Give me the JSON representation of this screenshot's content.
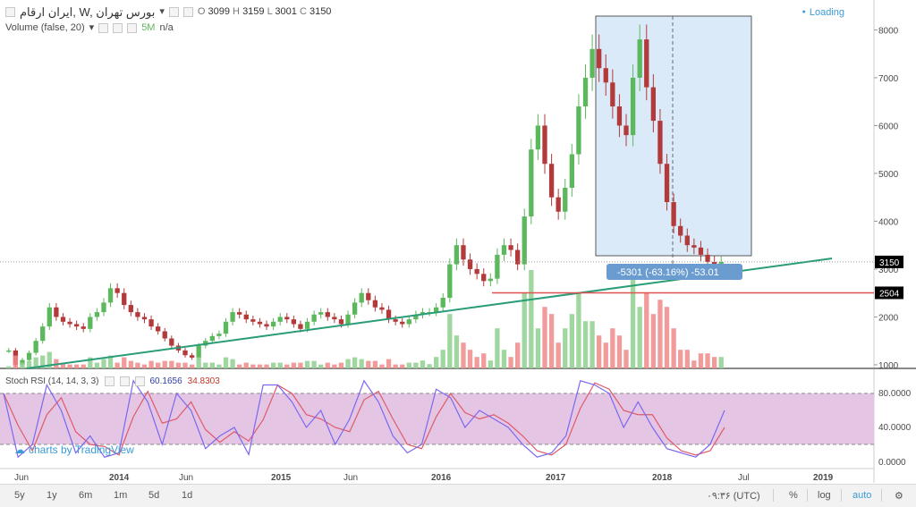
{
  "header": {
    "symbol": "ایران ارقام, W, بورس تهران",
    "ohlc": {
      "o_label": "O",
      "o": "3099",
      "h_label": "H",
      "h": "3159",
      "l_label": "L",
      "l": "3001",
      "c_label": "C",
      "c": "3150"
    },
    "volume_label": "Volume (false, 20)",
    "volume_value": "5M",
    "volume_na": "n/a",
    "loading": "Loading"
  },
  "price_axis": {
    "ticks": [
      "8000",
      "7000",
      "6000",
      "5000",
      "4000",
      "3000",
      "2000",
      "1000"
    ],
    "last_price": "3150",
    "line_price": "2504",
    "last_color": "#4a4a4a",
    "line_color": "#e05050"
  },
  "measure": {
    "label": "-5301 (-63.16%) -53.01"
  },
  "stoch": {
    "label": "Stoch RSI (14, 14, 3, 3)",
    "k": "60.1656",
    "d": "34.8303",
    "ticks": [
      "80.0000",
      "40.0000",
      "0.0000"
    ]
  },
  "watermark": "charts by TradingView",
  "time_axis": [
    "Jun",
    "2014",
    "Jun",
    "2015",
    "Jun",
    "2016",
    "2017",
    "2018",
    "Jul",
    "2019"
  ],
  "bottom": {
    "timeframes": [
      "5y",
      "1y",
      "6m",
      "1m",
      "5d",
      "1d"
    ],
    "clock": "۰۹:۳۶ (UTC)",
    "percent": "%",
    "log": "log",
    "auto": "auto"
  },
  "colors": {
    "up": "#5cb85c",
    "down": "#b33a3a",
    "trend": "#2a9d78",
    "measure_bg": "#dbeaf9",
    "stoch_band": "#e4c6e4",
    "k": "#7b68ee",
    "d": "#e05a6a"
  },
  "chart_data": {
    "type": "candlestick",
    "price_ylim": [
      700,
      8400
    ],
    "weekly_closes": [
      1300,
      1000,
      1100,
      1250,
      1500,
      1800,
      2200,
      2000,
      1900,
      1850,
      1800,
      1750,
      2000,
      2100,
      2300,
      2600,
      2500,
      2250,
      2100,
      2000,
      1950,
      1800,
      1700,
      1550,
      1400,
      1300,
      1200,
      1150,
      1400,
      1500,
      1600,
      1650,
      1900,
      2100,
      2050,
      1950,
      1900,
      1850,
      1800,
      1900,
      2000,
      1950,
      1850,
      1750,
      1900,
      2050,
      2100,
      2000,
      1950,
      1850,
      2050,
      2300,
      2500,
      2350,
      2200,
      2150,
      1950,
      1900,
      1850,
      1950,
      2050,
      2100,
      2100,
      2200,
      2400,
      3100,
      3500,
      3200,
      3000,
      2900,
      2750,
      2800,
      3300,
      3500,
      3400,
      3100,
      4100,
      5500,
      6000,
      5200,
      4500,
      4200,
      4700,
      5400,
      6400,
      7000,
      7600,
      7200,
      6900,
      6400,
      6000,
      5800,
      7000,
      7800,
      6800,
      6100,
      5200,
      4400,
      3900,
      3700,
      3500,
      3450,
      3300,
      3150,
      3050,
      3150
    ],
    "stoch_k_range": [
      0,
      100
    ],
    "stoch_band": [
      20,
      80
    ]
  }
}
